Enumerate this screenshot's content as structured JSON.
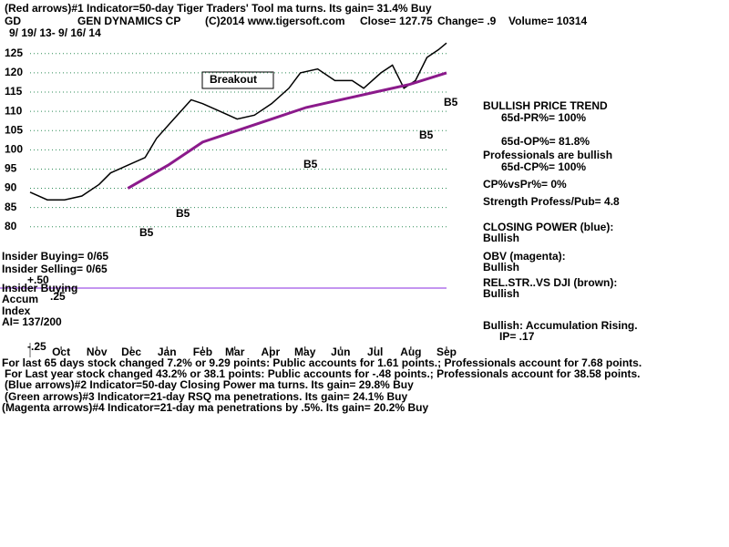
{
  "chart_data": {
    "type": "line",
    "title": "GEN DYNAMICS CP",
    "xlim": [
      0,
      362
    ],
    "xticks": [
      {
        "value": 27,
        "label": "Oct"
      },
      {
        "value": 58,
        "label": "Nov"
      },
      {
        "value": 88,
        "label": "Dec"
      },
      {
        "value": 119,
        "label": "Jan"
      },
      {
        "value": 150,
        "label": "Feb"
      },
      {
        "value": 178,
        "label": "Mar"
      },
      {
        "value": 209,
        "label": "Apr"
      },
      {
        "value": 239,
        "label": "May"
      },
      {
        "value": 270,
        "label": "Jun"
      },
      {
        "value": 300,
        "label": "Jul"
      },
      {
        "value": 331,
        "label": "Aug"
      },
      {
        "value": 362,
        "label": "Sep"
      }
    ],
    "ylim": [
      70,
      133
    ],
    "yticks": [
      80,
      85,
      90,
      95,
      100,
      105,
      110,
      115,
      120,
      125
    ],
    "grid": true,
    "series": [
      {
        "name": "Close",
        "color": "#000000",
        "x": [
          0,
          15,
          30,
          45,
          60,
          70,
          85,
          100,
          110,
          125,
          140,
          150,
          165,
          180,
          195,
          210,
          225,
          235,
          250,
          265,
          280,
          290,
          305,
          315,
          325,
          335,
          345,
          355,
          362
        ],
        "values": [
          89,
          87,
          87,
          88,
          91,
          94,
          96,
          98,
          103,
          108,
          113,
          112,
          110,
          108,
          109,
          112,
          116,
          120,
          121,
          118,
          118,
          116,
          120,
          122,
          116,
          118,
          124,
          126,
          127.75
        ]
      },
      {
        "name": "MA",
        "color": "#8b1a8b",
        "x": [
          85,
          120,
          150,
          180,
          210,
          240,
          270,
          300,
          330,
          362
        ],
        "values": [
          90,
          96,
          102,
          105,
          108,
          111,
          113,
          115,
          117,
          120
        ]
      }
    ],
    "annotations": [
      "(Red arrows)#1 Indicator=50-day Tiger Traders' Tool ma turns. Its gain= 31.4% Buy",
      "GD",
      "(C)2014 www.tigersoft.com",
      "Close= 127.75",
      "Change= .9",
      "Volume= 10314",
      "9/ 19/ 13- 9/ 16/ 14",
      "Breakout",
      "BULLISH PRICE TREND",
      "65d-PR%= 100%",
      "65d-OP%= 81.8%",
      "Professionals are bullish",
      "65d-CP%= 100%",
      "CP%vsPr%=  0%",
      "Strength Profess/Pub= 4.8",
      "CLOSING POWER (blue):",
      "Bullish",
      "OBV (magenta):",
      "Bullish",
      "REL.STR..VS DJI (brown):",
      "Bullish",
      "Bullish: Accumulation Rising.",
      "IP=  .17",
      "Insider Buying= 0/65",
      "Insider Selling= 0/65",
      "+.50",
      "Insider Buying",
      "Accum",
      ".25",
      "Index",
      "AI= 137/200",
      "-.25",
      "For last 65 days stock changed  7.2% or  9.29 points:  Public accounts for  1.61 points.;  Professionals account for  7.68 points.",
      "For Last year stock changed  43.2% or  38.1 points:  Public accounts for -.48 points.;  Professionals account for  38.58 points.",
      "(Blue arrows)#2 Indicator=50-day Closing Power ma turns. Its gain= 29.8% Buy",
      "(Green arrows)#3 Indicator=21-day RSQ ma penetrations. Its gain= 24.1% Buy",
      "(Magenta arrows)#4 Indicator=21-day ma penetrations by .5%. Its gain= 20.2% Buy",
      "B5",
      "B5",
      "B5",
      "B5",
      "B5"
    ]
  }
}
